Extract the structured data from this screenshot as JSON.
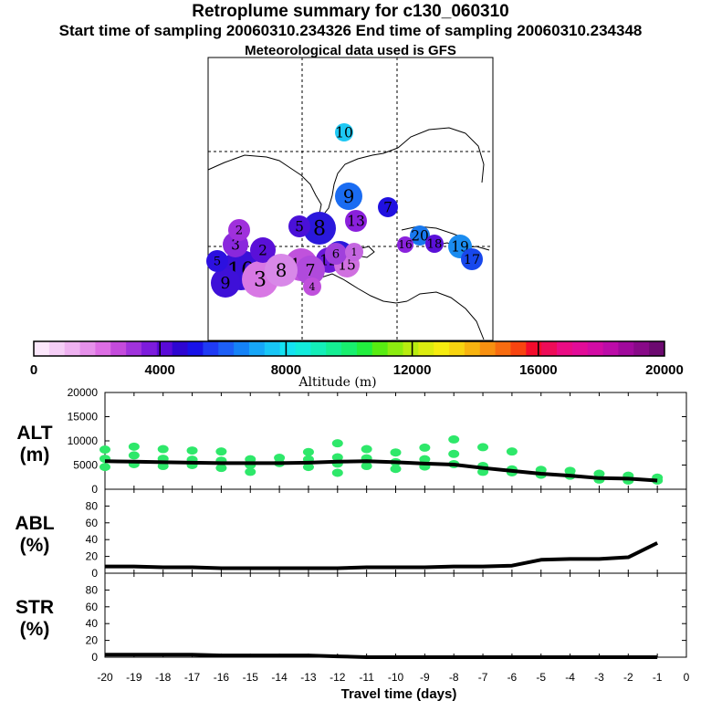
{
  "title": {
    "line1": "Retroplume summary for c130_060310",
    "line2": "Start time of sampling 20060310.234326     End time of sampling 20060310.234348",
    "line3": "Meteorological data used is GFS"
  },
  "colorbar": {
    "label": "Altitude (m)",
    "ticks": [
      "0",
      "4000",
      "8000",
      "12000",
      "16000",
      "20000"
    ],
    "colors": [
      "#fbe7fb",
      "#f5cef6",
      "#eeb2f0",
      "#e691ea",
      "#dd6ee4",
      "#c44bdc",
      "#a033dc",
      "#7d1cdc",
      "#5a0ad8",
      "#2e06d2",
      "#1812e8",
      "#1f3bf5",
      "#1d5ff6",
      "#1582f6",
      "#17a6f7",
      "#18c6f6",
      "#14e2f2",
      "#13ecdc",
      "#14eeb8",
      "#15ee93",
      "#18ef6e",
      "#22ee3e",
      "#58ec12",
      "#8cec10",
      "#b8ec10",
      "#dcec10",
      "#f6ec10",
      "#f8d410",
      "#f8b410",
      "#f89010",
      "#f86c10",
      "#f84410",
      "#f40c2c",
      "#ee0c58",
      "#ea0c84",
      "#e20c98",
      "#d20ca4",
      "#bc0ca8",
      "#a00a9c",
      "#880a88",
      "#6c0a70"
    ]
  },
  "map_labels": [
    {
      "text": "10",
      "color": "#1ec8f4"
    },
    {
      "text": "9",
      "color": "#1a6cf2"
    },
    {
      "text": "7",
      "color": "#2010e0"
    },
    {
      "text": "8",
      "color": "#2a18dc"
    },
    {
      "text": "5",
      "color": "#4a10d8"
    },
    {
      "text": "13",
      "color": "#8a20dc"
    },
    {
      "text": "20",
      "color": "#1878ee"
    },
    {
      "text": "19",
      "color": "#1a8cf0"
    },
    {
      "text": "18",
      "color": "#5a10d8"
    },
    {
      "text": "17",
      "color": "#1848ec"
    },
    {
      "text": "16",
      "color": "#8a22dc"
    },
    {
      "text": "14",
      "color": "#2a18dc"
    },
    {
      "text": "12",
      "color": "#6a18d8"
    },
    {
      "text": "11",
      "color": "#c052dc"
    },
    {
      "text": "15",
      "color": "#d070e0"
    },
    {
      "text": "10",
      "color": "#3a10d8"
    },
    {
      "text": "9",
      "color": "#3e10d8"
    },
    {
      "text": "3",
      "color": "#d878e4"
    },
    {
      "text": "2",
      "color": "#5a10d8"
    },
    {
      "text": "7",
      "color": "#b04adc"
    },
    {
      "text": "6",
      "color": "#a040dc"
    },
    {
      "text": "8",
      "color": "#d888e8"
    },
    {
      "text": "4",
      "color": "#c050dc"
    },
    {
      "text": "1",
      "color": "#c466e0"
    },
    {
      "text": "5",
      "color": "#2c10e0"
    },
    {
      "text": "3",
      "color": "#8a28dc"
    },
    {
      "text": "2",
      "color": "#a030dc"
    }
  ],
  "axes_common": {
    "xlabel": "Travel time (days)",
    "xticks": [
      "-20",
      "-19",
      "-18",
      "-17",
      "-16",
      "-15",
      "-14",
      "-13",
      "-12",
      "-11",
      "-10",
      "-9",
      "-8",
      "-7",
      "-6",
      "-5",
      "-4",
      "-3",
      "-2",
      "-1",
      "0"
    ],
    "xlim": [
      -20,
      0
    ]
  },
  "chart_data": [
    {
      "type": "line",
      "panel": "ALT",
      "ylabel": "ALT",
      "yunit": "(m)",
      "ylim": [
        0,
        20000
      ],
      "yticks": [
        "0",
        "5000",
        "10000",
        "15000",
        "20000"
      ],
      "x": [
        -20,
        -19,
        -18,
        -17,
        -16,
        -15,
        -14,
        -13,
        -12,
        -11,
        -10,
        -9,
        -8,
        -7,
        -6,
        -5,
        -4,
        -3,
        -2,
        -1
      ],
      "series": [
        {
          "name": "median altitude",
          "values": [
            5800,
            5700,
            5600,
            5500,
            5400,
            5400,
            5400,
            5500,
            5700,
            5800,
            5600,
            5300,
            5100,
            4400,
            3800,
            3200,
            2800,
            2300,
            2200,
            1800
          ]
        },
        {
          "name": "cluster altitudes",
          "style": "dots",
          "points": [
            [
              -20,
              4600
            ],
            [
              -20,
              6300
            ],
            [
              -20,
              8200
            ],
            [
              -19,
              5200
            ],
            [
              -19,
              7000
            ],
            [
              -19,
              8800
            ],
            [
              -18,
              4800
            ],
            [
              -18,
              6300
            ],
            [
              -18,
              8300
            ],
            [
              -17,
              5000
            ],
            [
              -17,
              6100
            ],
            [
              -17,
              8000
            ],
            [
              -16,
              4400
            ],
            [
              -16,
              5900
            ],
            [
              -16,
              7800
            ],
            [
              -15,
              5000
            ],
            [
              -15,
              6200
            ],
            [
              -15,
              3600
            ],
            [
              -14,
              5400
            ],
            [
              -14,
              6500
            ],
            [
              -13,
              4600
            ],
            [
              -13,
              6200
            ],
            [
              -13,
              7700
            ],
            [
              -12,
              5300
            ],
            [
              -12,
              6600
            ],
            [
              -12,
              9500
            ],
            [
              -12,
              3400
            ],
            [
              -11,
              4800
            ],
            [
              -11,
              6400
            ],
            [
              -11,
              8300
            ],
            [
              -10,
              4200
            ],
            [
              -10,
              5600
            ],
            [
              -10,
              7600
            ],
            [
              -9,
              4700
            ],
            [
              -9,
              6200
            ],
            [
              -9,
              8600
            ],
            [
              -8,
              5200
            ],
            [
              -8,
              7300
            ],
            [
              -8,
              10300
            ],
            [
              -7,
              3600
            ],
            [
              -7,
              4800
            ],
            [
              -7,
              8700
            ],
            [
              -6,
              3500
            ],
            [
              -6,
              4100
            ],
            [
              -6,
              7800
            ],
            [
              -5,
              3000
            ],
            [
              -5,
              4000
            ],
            [
              -4,
              2800
            ],
            [
              -4,
              3800
            ],
            [
              -3,
              2000
            ],
            [
              -3,
              3200
            ],
            [
              -2,
              1800
            ],
            [
              -2,
              2800
            ],
            [
              -1,
              1800
            ],
            [
              -1,
              2400
            ]
          ]
        }
      ]
    },
    {
      "type": "line",
      "panel": "ABL",
      "ylabel": "ABL",
      "yunit": "(%)",
      "ylim": [
        0,
        100
      ],
      "yticks": [
        "0",
        "20",
        "40",
        "60",
        "80"
      ],
      "x": [
        -20,
        -19,
        -18,
        -17,
        -16,
        -15,
        -14,
        -13,
        -12,
        -11,
        -10,
        -9,
        -8,
        -7,
        -6,
        -5,
        -4,
        -3,
        -2,
        -1
      ],
      "series": [
        {
          "name": "ABL",
          "values": [
            8,
            8,
            7,
            7,
            6,
            6,
            6,
            6,
            6,
            7,
            7,
            7,
            8,
            8,
            9,
            16,
            17,
            17,
            19,
            36
          ]
        }
      ]
    },
    {
      "type": "line",
      "panel": "STR",
      "ylabel": "STR",
      "yunit": "(%)",
      "ylim": [
        0,
        100
      ],
      "yticks": [
        "0",
        "20",
        "40",
        "60",
        "80"
      ],
      "x": [
        -20,
        -19,
        -18,
        -17,
        -16,
        -15,
        -14,
        -13,
        -12,
        -11,
        -10,
        -9,
        -8,
        -7,
        -6,
        -5,
        -4,
        -3,
        -2,
        -1
      ],
      "series": [
        {
          "name": "STR",
          "values": [
            3,
            3,
            3,
            3,
            2,
            2,
            2,
            2,
            1,
            0,
            0,
            0,
            0,
            0,
            0,
            0,
            0,
            0,
            0,
            0
          ]
        }
      ]
    }
  ]
}
